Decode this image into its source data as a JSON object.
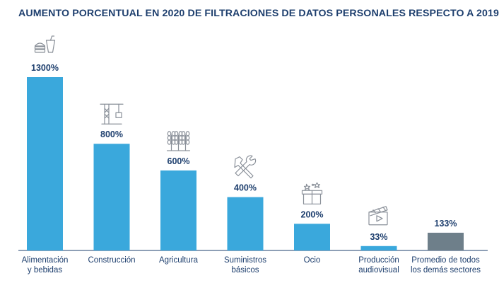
{
  "chart_data": {
    "type": "bar",
    "title": "AUMENTO PORCENTUAL EN 2020 DE FILTRACIONES DE DATOS PERSONALES RESPECTO A 2019",
    "categories": [
      [
        "Alimentación",
        "y bebidas"
      ],
      [
        "Construcción"
      ],
      [
        "Agricultura"
      ],
      [
        "Suministros",
        "básicos"
      ],
      [
        "Ocio"
      ],
      [
        "Producción",
        "audiovisual"
      ],
      [
        "Promedio de todos",
        "los demás sectores"
      ]
    ],
    "values": [
      1300,
      800,
      600,
      400,
      200,
      33,
      133
    ],
    "value_labels": [
      "1300%",
      "800%",
      "600%",
      "400%",
      "200%",
      "33%",
      "133%"
    ],
    "icons": [
      "food-drink-icon",
      "construction-crane-icon",
      "wheat-icon",
      "tools-icon",
      "gift-box-icon",
      "clapperboard-icon",
      ""
    ],
    "colors": [
      "#3aa8dc",
      "#3aa8dc",
      "#3aa8dc",
      "#3aa8dc",
      "#3aa8dc",
      "#3aa8dc",
      "#6e7f8a"
    ],
    "ylim": [
      0,
      1300
    ],
    "xlabel": "",
    "ylabel": "",
    "grid": false,
    "legend": "none"
  }
}
